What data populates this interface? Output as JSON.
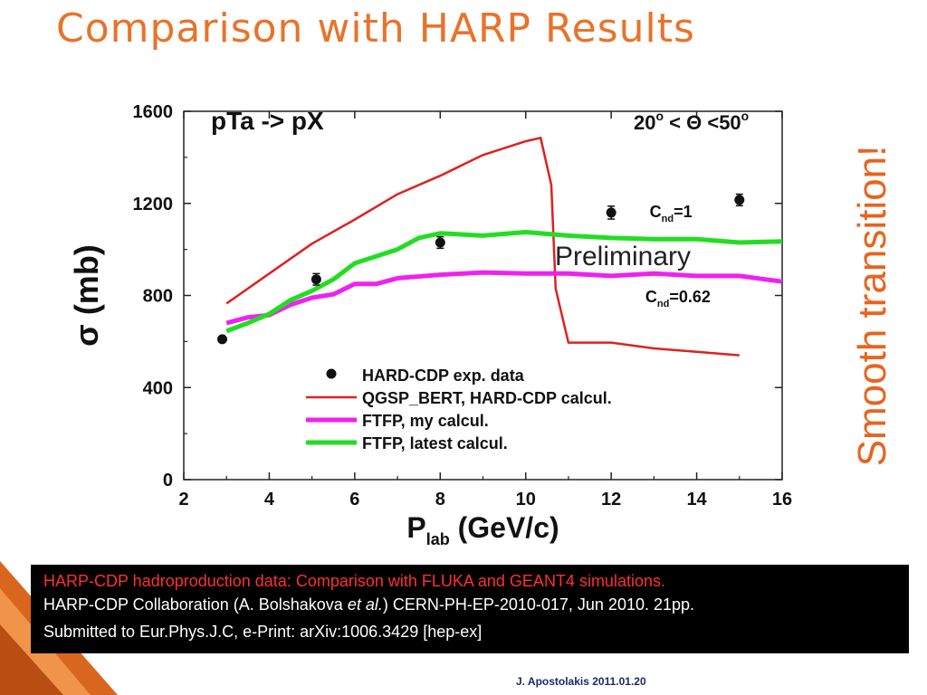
{
  "slide": {
    "title": "Comparison with HARP Results",
    "side_note": "Smooth transition!",
    "citation": {
      "line1": "HARP-CDP hadroproduction data: Comparison with FLUKA and GEANT4 simulations.",
      "line2_a": "HARP-CDP Collaboration (A. Bolshakova ",
      "line2_em": "et al.",
      "line2_b": ") CERN-PH-EP-2010-017, Jun 2010. 21pp.",
      "line3": "Submitted to Eur.Phys.J.C, e-Print: arXiv:1006.3429 [hep-ex]"
    },
    "author_date": "J. Apostolakis 2011.01.20"
  },
  "chart_data": {
    "type": "line",
    "title": "pTa -> pX",
    "angle_range": {
      "pre": "20",
      "sup1": "o",
      "mid": " < Θ <50",
      "sup2": "o"
    },
    "xlabel": {
      "main": "P",
      "sub": "lab",
      "unit": " (GeV/c)"
    },
    "ylabel": "σ (mb)",
    "xlim": [
      2,
      16
    ],
    "ylim": [
      0,
      1600
    ],
    "x_ticks": [
      2,
      4,
      6,
      8,
      10,
      12,
      14,
      16
    ],
    "y_ticks": [
      0,
      400,
      800,
      1200,
      1600
    ],
    "grid": false,
    "legend_position": "bottom-center",
    "watermark": "Preliminary",
    "annotations": [
      {
        "id": "cnd1",
        "main": "C",
        "sub": "nd",
        "rest": "=1",
        "x": 12.9,
        "y": 1140
      },
      {
        "id": "cnd062",
        "main": "C",
        "sub": "nd",
        "rest": "=0.62",
        "x": 12.8,
        "y": 770
      }
    ],
    "series": [
      {
        "name": "HARD-CDP exp. data",
        "kind": "points",
        "color": "#111111",
        "x": [
          2.9,
          5.1,
          8.0,
          12.0,
          15.0
        ],
        "y": [
          610,
          870,
          1030,
          1160,
          1215
        ],
        "err": [
          12,
          25,
          25,
          28,
          25
        ]
      },
      {
        "name": "QGSP_BERT, HARD-CDP calcul.",
        "kind": "line",
        "color": "#e02020",
        "x": [
          3.0,
          4.0,
          5.0,
          6.0,
          7.0,
          8.0,
          9.0,
          10.0,
          10.35,
          10.6,
          10.7,
          11.0,
          12.0,
          13.0,
          14.0,
          15.0
        ],
        "y": [
          765,
          895,
          1025,
          1130,
          1240,
          1320,
          1410,
          1470,
          1485,
          1280,
          830,
          595,
          595,
          570,
          555,
          540
        ]
      },
      {
        "name": "FTFP, my calcul.",
        "kind": "line",
        "color": "#ee22ee",
        "x": [
          3.0,
          3.5,
          4.0,
          4.5,
          5.0,
          5.5,
          6.0,
          6.5,
          7.0,
          8.0,
          9.0,
          10.0,
          11.0,
          12.0,
          13.0,
          14.0,
          15.0,
          16.0
        ],
        "y": [
          680,
          705,
          715,
          760,
          790,
          805,
          850,
          850,
          875,
          890,
          900,
          895,
          895,
          885,
          895,
          885,
          885,
          860
        ]
      },
      {
        "name": "FTFP, latest calcul.",
        "kind": "line",
        "color": "#22dd22",
        "x": [
          3.0,
          3.5,
          4.0,
          4.5,
          5.0,
          5.5,
          6.0,
          6.5,
          7.0,
          7.5,
          8.0,
          9.0,
          10.0,
          11.0,
          12.0,
          13.0,
          14.0,
          15.0,
          16.0
        ],
        "y": [
          645,
          680,
          720,
          780,
          820,
          870,
          940,
          970,
          1000,
          1050,
          1070,
          1060,
          1075,
          1060,
          1050,
          1045,
          1045,
          1030,
          1035
        ]
      }
    ]
  }
}
